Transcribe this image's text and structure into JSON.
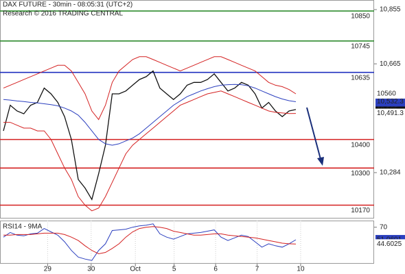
{
  "chart_data": [
    {
      "type": "line",
      "title": "DAX FUTURE - 30min - 08:05:31 (UTC+2)",
      "subtitle": "Research © 2016 TRADING CENTRAL",
      "x": [
        0.5,
        1.5,
        2.5,
        3.5,
        4.5,
        5.5,
        6.5,
        7.5,
        8.5,
        9.5,
        10.5,
        11.5,
        12.5,
        13.5,
        14.5,
        15.5,
        16.5,
        17.5,
        18.5,
        19.5,
        20.5,
        21.5,
        22.5,
        23.5,
        24.5,
        25.5,
        26.5,
        27.5,
        28.5,
        29.5,
        30.5,
        31.5,
        32.5,
        33.5,
        34.5,
        35.5,
        36.5,
        37.5,
        38.5,
        39.5,
        40.5,
        41.5,
        42.5,
        43.5
      ],
      "xlim": [
        0,
        55
      ],
      "ylim": [
        10125.6,
        10888.6
      ],
      "yticks": [
        {
          "value": 10855,
          "label": "10,855"
        },
        {
          "value": 10665,
          "label": "10,665"
        },
        {
          "value": 10284,
          "label": "10,284"
        }
      ],
      "levels": [
        {
          "value": 10850,
          "color": "#2e8b2e"
        },
        {
          "value": 10745,
          "color": "#2e8b2e"
        },
        {
          "value": 10635,
          "color": "#1f2fbf"
        },
        {
          "value": 10400,
          "color": "#d42020"
        },
        {
          "value": 10300,
          "color": "#d42020"
        },
        {
          "value": 10170,
          "color": "#d42020"
        }
      ],
      "series": [
        {
          "color": "#111111",
          "last_label": "10,505",
          "values": [
            10430,
            10520,
            10500,
            10490,
            10520,
            10530,
            10580,
            10560,
            10530,
            10480,
            10400,
            10260,
            10230,
            10190,
            10280,
            10380,
            10560,
            10560,
            10570,
            10590,
            10610,
            10620,
            10640,
            10580,
            10560,
            10540,
            10560,
            10590,
            10600,
            10600,
            10610,
            10630,
            10600,
            10570,
            10580,
            10600,
            10590,
            10560,
            10510,
            10530,
            10500,
            10480,
            10500,
            10505
          ]
        },
        {
          "color": "#2b3fbf",
          "last_label": "10,532.3",
          "values": [
            10540,
            10538,
            10535,
            10533,
            10530,
            10528,
            10525,
            10522,
            10518,
            10510,
            10500,
            10485,
            10460,
            10430,
            10400,
            10385,
            10380,
            10385,
            10395,
            10405,
            10420,
            10440,
            10460,
            10480,
            10500,
            10520,
            10535,
            10550,
            10560,
            10570,
            10578,
            10585,
            10590,
            10592,
            10593,
            10592,
            10588,
            10580,
            10570,
            10560,
            10550,
            10542,
            10536,
            10532.3
          ]
        },
        {
          "color": "#d42020",
          "values": [
            10580,
            10590,
            10600,
            10610,
            10620,
            10630,
            10640,
            10650,
            10660,
            10660,
            10640,
            10600,
            10560,
            10500,
            10470,
            10520,
            10600,
            10640,
            10660,
            10680,
            10690,
            10690,
            10680,
            10670,
            10660,
            10650,
            10640,
            10650,
            10660,
            10670,
            10680,
            10690,
            10690,
            10680,
            10670,
            10660,
            10650,
            10640,
            10620,
            10600,
            10590,
            10585,
            10575,
            10560
          ]
        },
        {
          "color": "#d42020",
          "last_label": "10,491.3",
          "values": [
            10460,
            10460,
            10450,
            10440,
            10440,
            10430,
            10430,
            10400,
            10350,
            10300,
            10260,
            10200,
            10170,
            10150,
            10160,
            10200,
            10250,
            10300,
            10350,
            10380,
            10400,
            10420,
            10440,
            10460,
            10480,
            10500,
            10520,
            10530,
            10540,
            10550,
            10560,
            10565,
            10570,
            10560,
            10550,
            10540,
            10530,
            10520,
            10510,
            10500,
            10495,
            10493,
            10491,
            10491.3
          ]
        }
      ]
    },
    {
      "type": "line",
      "title": "RSI14 - 9MA",
      "x": [
        0.5,
        1.5,
        2.5,
        3.5,
        4.5,
        5.5,
        6.5,
        7.5,
        8.5,
        9.5,
        10.5,
        11.5,
        12.5,
        13.5,
        14.5,
        15.5,
        16.5,
        17.5,
        18.5,
        19.5,
        20.5,
        21.5,
        22.5,
        23.5,
        24.5,
        25.5,
        26.5,
        27.5,
        28.5,
        29.5,
        30.5,
        31.5,
        32.5,
        33.5,
        34.5,
        35.5,
        36.5,
        37.5,
        38.5,
        39.5,
        40.5,
        41.5,
        42.5,
        43.5
      ],
      "xlim": [
        0,
        55
      ],
      "xticks": [
        {
          "value": 7,
          "label": "29"
        },
        {
          "value": 13.4,
          "label": "30"
        },
        {
          "value": 19.9,
          "label": "Oct"
        },
        {
          "value": 25.6,
          "label": "5"
        },
        {
          "value": 31.7,
          "label": "6"
        },
        {
          "value": 37.8,
          "label": "7"
        },
        {
          "value": 44.2,
          "label": "10"
        }
      ],
      "ylim": [
        15,
        80
      ],
      "yticks": [
        70
      ],
      "series": [
        {
          "color": "#2b3fbf",
          "values": [
            55,
            62,
            58,
            57,
            60,
            61,
            68,
            63,
            58,
            48,
            35,
            25,
            22,
            20,
            35,
            45,
            65,
            66,
            67,
            70,
            72,
            73,
            75,
            60,
            55,
            52,
            56,
            60,
            61,
            62,
            64,
            66,
            55,
            50,
            54,
            58,
            56,
            48,
            40,
            45,
            42,
            40,
            45,
            51.0601
          ]
        },
        {
          "color": "#d42020",
          "values": [
            58,
            58,
            59,
            59,
            59,
            60,
            61,
            61,
            61,
            59,
            55,
            50,
            42,
            35,
            30,
            32,
            38,
            45,
            55,
            63,
            68,
            70,
            71,
            70,
            68,
            64,
            62,
            60,
            58,
            58,
            59,
            60,
            60,
            58,
            57,
            56,
            55,
            54,
            52,
            50,
            48,
            46,
            45,
            44.6025
          ]
        }
      ]
    }
  ]
}
